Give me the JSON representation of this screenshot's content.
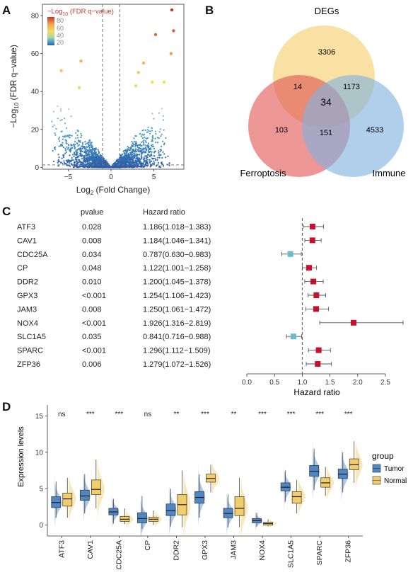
{
  "panels": {
    "a": {
      "letter": "A"
    },
    "b": {
      "letter": "B"
    },
    "c": {
      "letter": "C"
    },
    "d": {
      "letter": "D"
    }
  },
  "chart_data": [
    {
      "type": "scatter",
      "panel": "A",
      "xlabel_main": "Log",
      "xlabel_sub": "2",
      "xlabel_rest": " (Fold Change)",
      "ylabel_main": "−Log",
      "ylabel_sub": "10",
      "ylabel_rest": " (FDR q−value)",
      "legend_title_main": "−Log",
      "legend_title_sub": "10",
      "legend_title_rest": " (FDR q−value)",
      "legend_ticks": [
        "80",
        "60",
        "40",
        "20"
      ],
      "color_scale": [
        "#2a5caa",
        "#4aa0c8",
        "#a8d6a4",
        "#f0e060",
        "#f3a24b",
        "#c0392b"
      ],
      "x_ticks": [
        "−5",
        "0",
        "5"
      ],
      "x_tick_values": [
        -5,
        0,
        5
      ],
      "y_ticks": [
        "0",
        "20",
        "40",
        "60",
        "80"
      ],
      "y_tick_values": [
        0,
        20,
        40,
        60,
        80
      ],
      "xlim": [
        -8,
        8.5
      ],
      "ylim": [
        -1,
        86
      ],
      "threshold_fc": [
        -1,
        1
      ],
      "threshold_y": 1.3,
      "highlight_points": [
        {
          "x": 7.1,
          "y": 83
        },
        {
          "x": 7.3,
          "y": 72
        },
        {
          "x": 5.2,
          "y": 70
        },
        {
          "x": -3.5,
          "y": 56
        },
        {
          "x": -5.8,
          "y": 51
        },
        {
          "x": 3.8,
          "y": 55
        },
        {
          "x": 7.0,
          "y": 60
        },
        {
          "x": 4.8,
          "y": 45
        },
        {
          "x": 3.2,
          "y": 50
        },
        {
          "x": 6.2,
          "y": 45
        },
        {
          "x": -3.7,
          "y": 42
        },
        {
          "x": 2.9,
          "y": 43
        }
      ]
    },
    {
      "type": "venn",
      "panel": "B",
      "sets": [
        "DEGs",
        "Ferroptosis",
        "Immune"
      ],
      "regions": {
        "DEGs_only": "3306",
        "Ferroptosis_only": "103",
        "Immune_only": "4533",
        "DEGs_Ferroptosis": "14",
        "DEGs_Immune": "1173",
        "Ferroptosis_Immune": "151",
        "all": "34"
      },
      "colors": {
        "DEGs": "#f5d580",
        "Ferroptosis": "#e05555",
        "Immune": "#7fb1de"
      }
    },
    {
      "type": "forest",
      "panel": "C",
      "header_pvalue": "pvalue",
      "header_hr": "Hazard ratio",
      "xlabel": "Hazard ratio",
      "x_ticks": [
        "0.0",
        "0.5",
        "1.0",
        "1.5",
        "2.0",
        "2.5"
      ],
      "x_tick_values": [
        0,
        0.5,
        1.0,
        1.5,
        2.0,
        2.5
      ],
      "xlim": [
        0,
        2.5
      ],
      "ref_line": 1.0,
      "rows": [
        {
          "gene": "ATF3",
          "pvalue": "0.028",
          "hr_text": "1.186(1.018−1.383)",
          "hr": 1.186,
          "lo": 1.018,
          "hi": 1.383
        },
        {
          "gene": "CAV1",
          "pvalue": "0.008",
          "hr_text": "1.184(1.046−1.341)",
          "hr": 1.184,
          "lo": 1.046,
          "hi": 1.341
        },
        {
          "gene": "CDC25A",
          "pvalue": "0.034",
          "hr_text": "0.787(0.630−0.983)",
          "hr": 0.787,
          "lo": 0.63,
          "hi": 0.983
        },
        {
          "gene": "CP",
          "pvalue": "0.048",
          "hr_text": "1.122(1.001−1.258)",
          "hr": 1.122,
          "lo": 1.001,
          "hi": 1.258
        },
        {
          "gene": "DDR2",
          "pvalue": "0.010",
          "hr_text": "1.200(1.045−1.378)",
          "hr": 1.2,
          "lo": 1.045,
          "hi": 1.378
        },
        {
          "gene": "GPX3",
          "pvalue": "<0.001",
          "hr_text": "1.254(1.106−1.423)",
          "hr": 1.254,
          "lo": 1.106,
          "hi": 1.423
        },
        {
          "gene": "JAM3",
          "pvalue": "0.008",
          "hr_text": "1.250(1.061−1.472)",
          "hr": 1.25,
          "lo": 1.061,
          "hi": 1.472
        },
        {
          "gene": "NOX4",
          "pvalue": "<0.001",
          "hr_text": "1.926(1.316−2.819)",
          "hr": 1.926,
          "lo": 1.316,
          "hi": 2.819
        },
        {
          "gene": "SLC1A5",
          "pvalue": "0.035",
          "hr_text": "0.841(0.716−0.988)",
          "hr": 0.841,
          "lo": 0.716,
          "hi": 0.988
        },
        {
          "gene": "SPARC",
          "pvalue": "<0.001",
          "hr_text": "1.296(1.112−1.509)",
          "hr": 1.296,
          "lo": 1.112,
          "hi": 1.509
        },
        {
          "gene": "ZFP36",
          "pvalue": "0.006",
          "hr_text": "1.279(1.072−1.526)",
          "hr": 1.279,
          "lo": 1.072,
          "hi": 1.526
        }
      ],
      "colors": {
        "risk": "#c8102e",
        "protective": "#6bbcc8"
      }
    },
    {
      "type": "box",
      "panel": "D",
      "ylabel": "Expression levels",
      "y_ticks": [
        "0",
        "5",
        "10",
        "15"
      ],
      "y_tick_values": [
        0,
        5,
        10,
        15
      ],
      "ylim": [
        -1.5,
        16.5
      ],
      "legend_title": "group",
      "series": [
        {
          "name": "Tumor",
          "color": "#4f87c4"
        },
        {
          "name": "Normal",
          "color": "#f2cd6b"
        }
      ],
      "categories": [
        "ATF3",
        "CAV1",
        "CDC25A",
        "CP",
        "DDR2",
        "GPX3",
        "JAM3",
        "NOX4",
        "SLC1A5",
        "SPARC",
        "ZFP36"
      ],
      "significance": [
        "ns",
        "***",
        "***",
        "ns",
        "**",
        "***",
        "**",
        "***",
        "***",
        "***",
        "***"
      ],
      "tumor": [
        {
          "q1": 2.4,
          "med": 3.1,
          "q3": 3.9,
          "wlo": 1.0,
          "whi": 6.0
        },
        {
          "q1": 3.4,
          "med": 4.0,
          "q3": 4.8,
          "wlo": 1.6,
          "whi": 7.0
        },
        {
          "q1": 1.4,
          "med": 1.8,
          "q3": 2.3,
          "wlo": 0.2,
          "whi": 3.6
        },
        {
          "q1": 0.3,
          "med": 0.9,
          "q3": 1.7,
          "wlo": -0.5,
          "whi": 4.0
        },
        {
          "q1": 1.3,
          "med": 2.0,
          "q3": 2.9,
          "wlo": -0.2,
          "whi": 5.0
        },
        {
          "q1": 3.0,
          "med": 3.8,
          "q3": 4.6,
          "wlo": 1.0,
          "whi": 7.0
        },
        {
          "q1": 1.0,
          "med": 1.6,
          "q3": 2.3,
          "wlo": -0.3,
          "whi": 4.2
        },
        {
          "q1": 0.3,
          "med": 0.6,
          "q3": 0.9,
          "wlo": -0.2,
          "whi": 1.7
        },
        {
          "q1": 4.7,
          "med": 5.2,
          "q3": 5.8,
          "wlo": 3.2,
          "whi": 7.5
        },
        {
          "q1": 6.7,
          "med": 7.4,
          "q3": 8.2,
          "wlo": 4.8,
          "whi": 10.5
        },
        {
          "q1": 6.4,
          "med": 7.0,
          "q3": 7.7,
          "wlo": 4.5,
          "whi": 10.0
        }
      ],
      "normal": [
        {
          "q1": 2.6,
          "med": 3.6,
          "q3": 4.4,
          "wlo": 1.0,
          "whi": 6.5
        },
        {
          "q1": 4.2,
          "med": 4.9,
          "q3": 6.2,
          "wlo": 2.3,
          "whi": 9.0
        },
        {
          "q1": 0.5,
          "med": 0.8,
          "q3": 1.2,
          "wlo": 0.1,
          "whi": 2.3
        },
        {
          "q1": 0.5,
          "med": 0.8,
          "q3": 1.1,
          "wlo": 0.0,
          "whi": 2.0
        },
        {
          "q1": 1.4,
          "med": 2.8,
          "q3": 4.2,
          "wlo": -0.3,
          "whi": 7.5
        },
        {
          "q1": 5.9,
          "med": 6.4,
          "q3": 7.0,
          "wlo": 4.5,
          "whi": 8.3
        },
        {
          "q1": 1.3,
          "med": 2.3,
          "q3": 3.9,
          "wlo": -0.3,
          "whi": 6.5
        },
        {
          "q1": 0.0,
          "med": 0.2,
          "q3": 0.4,
          "wlo": -0.2,
          "whi": 0.8
        },
        {
          "q1": 3.0,
          "med": 3.9,
          "q3": 4.6,
          "wlo": 1.6,
          "whi": 6.2
        },
        {
          "q1": 5.2,
          "med": 5.8,
          "q3": 6.5,
          "wlo": 4.0,
          "whi": 8.0
        },
        {
          "q1": 7.6,
          "med": 8.3,
          "q3": 9.1,
          "wlo": 5.8,
          "whi": 11.5
        }
      ]
    }
  ]
}
